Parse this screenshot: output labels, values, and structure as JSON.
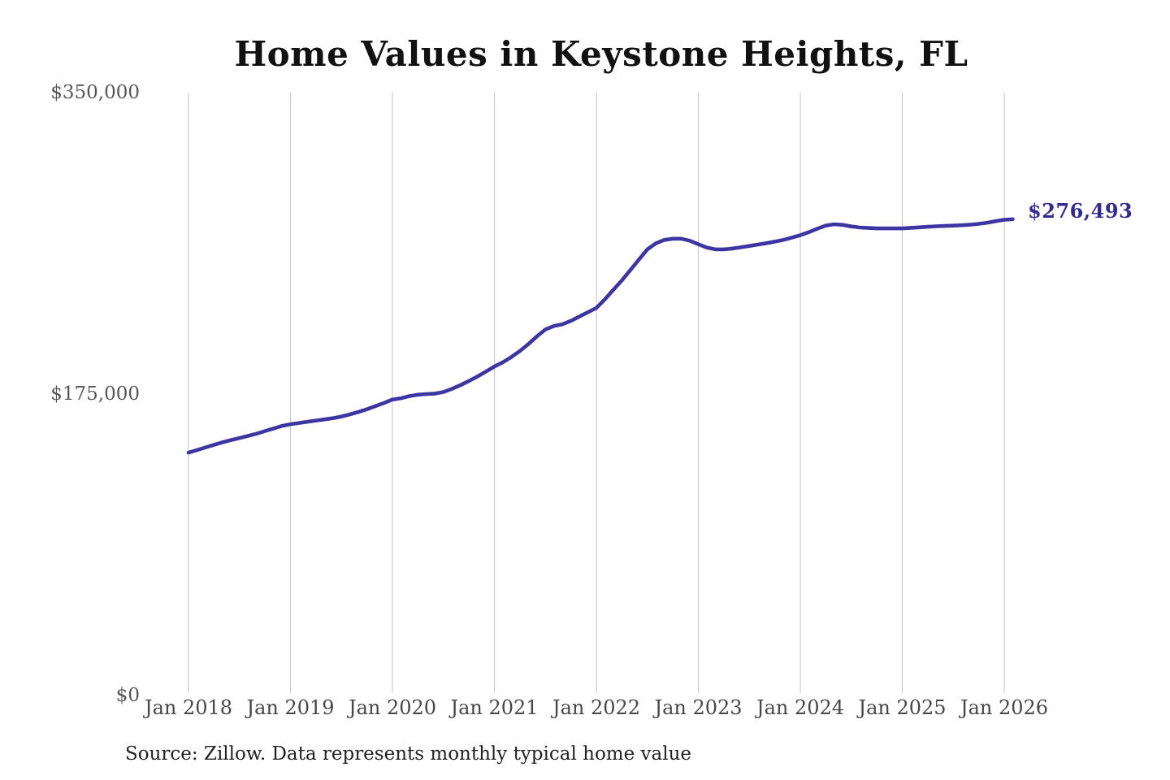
{
  "chart_data": {
    "type": "line",
    "title": "Home Values in Keystone Heights, FL",
    "source_note": "Source: Zillow. Data represents monthly typical home value",
    "x_start": "Jan 2018",
    "frequency": "monthly",
    "x_ticks": [
      "Jan 2018",
      "Jan 2019",
      "Jan 2020",
      "Jan 2021",
      "Jan 2022",
      "Jan 2023",
      "Jan 2024",
      "Jan 2025",
      "Jan 2026"
    ],
    "x_tick_month_index": [
      0,
      12,
      24,
      36,
      48,
      60,
      72,
      84,
      96
    ],
    "y_ticks": [
      {
        "label": "$0",
        "value": 0
      },
      {
        "label": "$175,000",
        "value": 175000
      },
      {
        "label": "$350,000",
        "value": 350000
      }
    ],
    "ylim": [
      0,
      350000
    ],
    "grid": "vertical-only",
    "legend": "none",
    "end_label": "$276,493",
    "end_value": 276493,
    "series": [
      {
        "name": "Typical home value",
        "values": [
          141000,
          142500,
          144000,
          145500,
          147000,
          148300,
          149500,
          150700,
          152000,
          153500,
          155000,
          156500,
          157500,
          158200,
          158900,
          159600,
          160300,
          161000,
          162000,
          163200,
          164600,
          166200,
          168000,
          169800,
          171800,
          172600,
          173800,
          174600,
          175000,
          175300,
          176200,
          178000,
          180200,
          182600,
          185200,
          188000,
          191000,
          193500,
          196500,
          200000,
          204000,
          208500,
          212500,
          214500,
          215500,
          217500,
          220000,
          222500,
          225000,
          230000,
          235500,
          241000,
          247000,
          253000,
          259000,
          262500,
          264500,
          265200,
          265200,
          264000,
          262000,
          260000,
          259000,
          259000,
          259500,
          260200,
          261000,
          261800,
          262600,
          263500,
          264500,
          265800,
          267200,
          269000,
          271000,
          272800,
          273600,
          273200,
          272300,
          271700,
          271400,
          271200,
          271200,
          271200,
          271200,
          271500,
          271800,
          272100,
          272400,
          272600,
          272800,
          273000,
          273300,
          273800,
          274500,
          275400,
          276200,
          276493
        ]
      }
    ],
    "colors": {
      "line": "#3d35a2",
      "end_label": "#322b91",
      "grid": "#cbcbcb",
      "title": "#111111",
      "axis_text": "#4f4f4f",
      "background": "#ffffff"
    }
  }
}
